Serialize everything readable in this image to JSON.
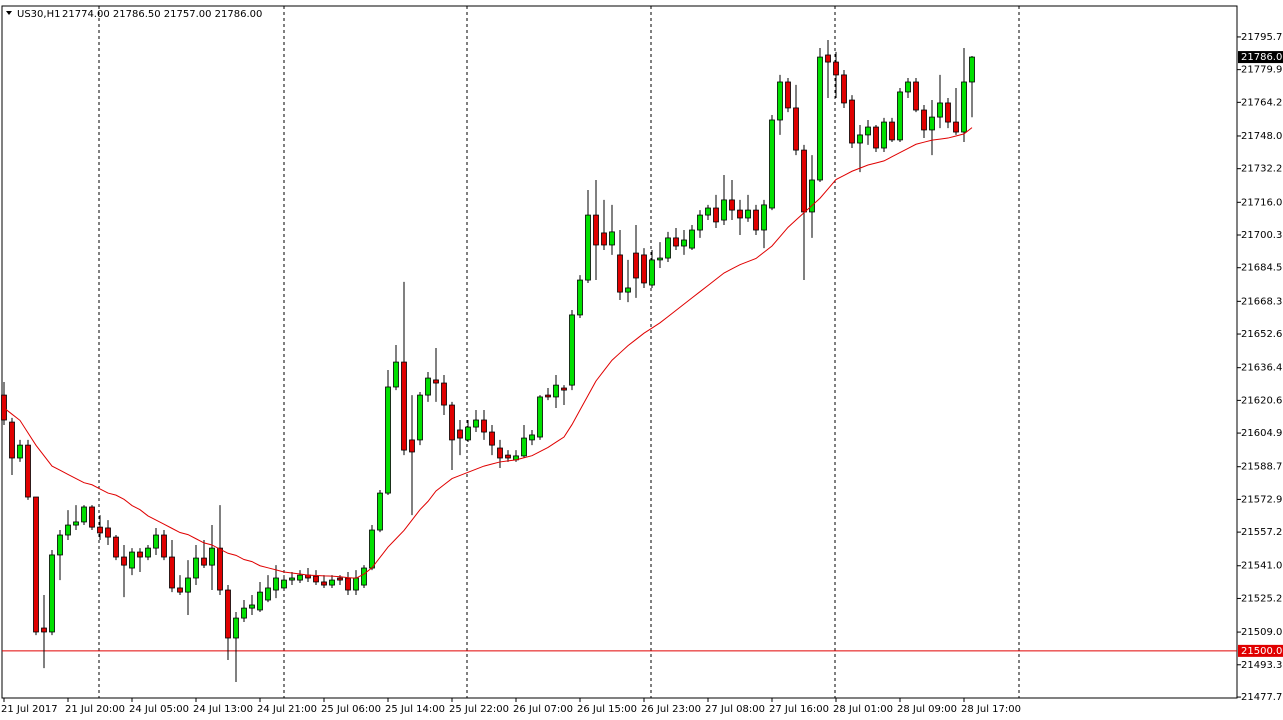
{
  "chart_data": {
    "type": "candlestick",
    "title": "US30,H1",
    "ohlc_label": "21774.00 21786.50 21757.00 21786.00",
    "categories": [
      "21 Jul 2017",
      null,
      null,
      null,
      null,
      null,
      null,
      null,
      "21 Jul 20:00",
      null,
      null,
      null,
      null,
      null,
      null,
      null,
      "24 Jul 05:00",
      null,
      null,
      null,
      null,
      null,
      null,
      null,
      "24 Jul 13:00",
      null,
      null,
      null,
      null,
      null,
      null,
      null,
      "24 Jul 21:00",
      null,
      null,
      null,
      null,
      null,
      null,
      null,
      "25 Jul 06:00",
      null,
      null,
      null,
      null,
      null,
      null,
      null,
      "25 Jul 14:00",
      null,
      null,
      null,
      null,
      null,
      null,
      null,
      "25 Jul 22:00",
      null,
      null,
      null,
      null,
      null,
      null,
      null,
      "26 Jul 07:00",
      null,
      null,
      null,
      null,
      null,
      null,
      null,
      "26 Jul 15:00",
      null,
      null,
      null,
      null,
      null,
      null,
      null,
      "26 Jul 23:00",
      null,
      null,
      null,
      null,
      null,
      null,
      null,
      "27 Jul 08:00",
      null,
      null,
      null,
      null,
      null,
      null,
      null,
      "27 Jul 16:00",
      null,
      null,
      null,
      null,
      null,
      null,
      null,
      "28 Jul 01:00",
      null,
      null,
      null,
      null,
      null,
      null,
      null,
      "28 Jul 09:00",
      null,
      null,
      null,
      null,
      null,
      null,
      null,
      "28 Jul 17:00",
      null
    ],
    "open": [
      21623.2,
      21610.2,
      21592.9,
      21599.1,
      21574.1,
      21511.0,
      21509.1,
      21546.2,
      21555.8,
      21560.6,
      21562.1,
      21569.3,
      21559.6,
      21559.2,
      21554.8,
      21545.2,
      21539.9,
      21547.6,
      21545.2,
      21549.5,
      21555.8,
      21545.2,
      21530.3,
      21528.3,
      21535.1,
      21544.7,
      21541.3,
      21549.5,
      21529.3,
      21506.2,
      21515.8,
      21520.6,
      21519.7,
      21524.5,
      21529.3,
      21530.3,
      21534.1,
      21534.1,
      21536.5,
      21536.0,
      21533.2,
      21531.7,
      21535.1,
      21535.1,
      21529.3,
      21531.7,
      21539.9,
      21558.2,
      21576.0,
      21627.1,
      21639.1,
      21601.6,
      21601.6,
      21623.2,
      21630.5,
      21629.0,
      21618.4,
      21606.4,
      21601.6,
      21607.8,
      21611.2,
      21605.4,
      21597.7,
      21594.3,
      21592.0,
      21593.9,
      21601.6,
      21603.0,
      21623.2,
      21622.3,
      21626.6,
      21628.0,
      21661.8,
      21678.6,
      21709.9,
      21701.3,
      21695.5,
      21690.7,
      21672.8,
      21691.6,
      21690.7,
      21676.2,
      21688.3,
      21689.2,
      21698.9,
      21695.0,
      21694.0,
      21702.7,
      21709.9,
      21713.3,
      21707.5,
      21717.2,
      21712.3,
      21708.5,
      21712.3,
      21702.7,
      21713.3,
      21755.7,
      21774.0,
      21761.5,
      21741.2,
      21711.4,
      21726.8,
      21787.0,
      21783.6,
      21777.4,
      21765.3,
      21744.6,
      21748.5,
      21752.3,
      21742.2,
      21754.7,
      21746.1,
      21769.2,
      21774.0,
      21760.5,
      21750.9,
      21757.1,
      21763.9,
      21754.7,
      21749.9,
      21774
    ],
    "high": [
      21629.5,
      21612.2,
      21601.6,
      21601.6,
      21574.1,
      21526.9,
      21548.6,
      21558.2,
      21567.8,
      21570.2,
      21570.2,
      21570.2,
      21565.4,
      21563.0,
      21555.8,
      21551.0,
      21549.5,
      21549.5,
      21551.0,
      21559.2,
      21558.2,
      21553.4,
      21536.5,
      21543.7,
      21551.0,
      21553.4,
      21560.6,
      21570.2,
      21531.7,
      21518.7,
      21524.5,
      21526.9,
      21533.2,
      21536.5,
      21541.3,
      21536.5,
      21538.0,
      21538.9,
      21539.9,
      21538.9,
      21536.5,
      21536.5,
      21536.5,
      21538.0,
      21538.9,
      21541.3,
      21560.6,
      21577.5,
      21635.3,
      21647.3,
      21677.7,
      21623.2,
      21624.7,
      21634.3,
      21645.9,
      21632.9,
      21619.9,
      21611.2,
      21611.2,
      21616.0,
      21616.0,
      21608.8,
      21601.6,
      21596.7,
      21596.7,
      21608.8,
      21606.4,
      21623.2,
      21626.6,
      21632.9,
      21628.0,
      21664.2,
      21681.0,
      21722.0,
      21726.8,
      21717.2,
      21714.8,
      21702.7,
      21688.3,
      21705.1,
      21694.0,
      21693.1,
      21696.9,
      21701.8,
      21703.7,
      21702.7,
      21705.1,
      21712.3,
      21714.8,
      21719.6,
      21729.2,
      21726.8,
      21717.2,
      21719.6,
      21714.8,
      21717.2,
      21758.1,
      21777.4,
      21775.9,
      21772.6,
      21743.7,
      21738.8,
      21790.4,
      21794.2,
      21788.5,
      21779.8,
      21767.7,
      21753.3,
      21755.7,
      21753.3,
      21756.7,
      21756.7,
      21771.1,
      21775.9,
      21775.9,
      21762.9,
      21765.3,
      21777.4,
      21766.3,
      21771.1,
      21790.4,
      21786.5
    ],
    "low": [
      21608.8,
      21584.7,
      21591.0,
      21572.7,
      21507.6,
      21491.7,
      21507.6,
      21534.1,
      21553.4,
      21558.2,
      21560.6,
      21558.2,
      21553.4,
      21551.0,
      21543.7,
      21525.9,
      21536.5,
      21538.0,
      21543.7,
      21546.2,
      21543.7,
      21528.3,
      21526.9,
      21517.3,
      21531.7,
      21539.9,
      21529.3,
      21526.9,
      21495.6,
      21485.0,
      21513.9,
      21517.3,
      21518.7,
      21523.5,
      21525.4,
      21529.3,
      21531.7,
      21532.7,
      21533.2,
      21531.7,
      21530.3,
      21530.3,
      21531.7,
      21526.9,
      21526.9,
      21530.3,
      21538.9,
      21557.2,
      21575.1,
      21625.6,
      21594.3,
      21565.4,
      21599.1,
      21619.9,
      21619.9,
      21613.6,
      21587.1,
      21594.3,
      21600.6,
      21605.4,
      21601.6,
      21594.3,
      21588.1,
      21591.0,
      21591.0,
      21592.9,
      21599.1,
      21601.6,
      21620.8,
      21617.0,
      21618.4,
      21625.6,
      21660.3,
      21677.2,
      21678.6,
      21693.1,
      21690.7,
      21669.0,
      21668.0,
      21670.0,
      21674.8,
      21674.8,
      21684.4,
      21687.3,
      21693.1,
      21690.7,
      21693.1,
      21698.9,
      21707.5,
      21703.7,
      21705.1,
      21707.5,
      21700.3,
      21706.6,
      21700.3,
      21694.0,
      21712.3,
      21748.5,
      21759.5,
      21738.8,
      21678.6,
      21698.9,
      21725.8,
      21766.3,
      21766.3,
      21761.5,
      21742.2,
      21730.6,
      21743.7,
      21740.3,
      21740.3,
      21745.1,
      21745.1,
      21766.3,
      21759.5,
      21747.0,
      21738.8,
      21751.8,
      21751.8,
      21748.5,
      21745.1,
      21757
    ],
    "close": [
      21611.2,
      21592.9,
      21599.1,
      21574.1,
      21509.1,
      21509.1,
      21546.2,
      21555.8,
      21560.6,
      21562.1,
      21569.3,
      21559.6,
      21556.8,
      21554.8,
      21545.2,
      21541.3,
      21547.6,
      21545.2,
      21549.5,
      21555.8,
      21545.2,
      21530.3,
      21528.3,
      21535.1,
      21544.7,
      21541.3,
      21549.5,
      21529.3,
      21506.2,
      21515.8,
      21520.6,
      21522.1,
      21528.3,
      21530.3,
      21535.1,
      21534.1,
      21535.1,
      21536.5,
      21535.1,
      21533.2,
      21531.7,
      21534.1,
      21534.1,
      21529.3,
      21535.1,
      21539.9,
      21558.2,
      21576.0,
      21627.1,
      21639.1,
      21596.7,
      21595.8,
      21623.2,
      21631.4,
      21629.0,
      21618.4,
      21601.6,
      21602.5,
      21607.8,
      21611.2,
      21605.4,
      21599.1,
      21592.9,
      21592.9,
      21593.9,
      21602.5,
      21604.0,
      21622.3,
      21622.3,
      21628.0,
      21625.6,
      21661.8,
      21678.6,
      21709.9,
      21695.5,
      21695.5,
      21701.8,
      21672.8,
      21674.8,
      21679.6,
      21677.2,
      21688.3,
      21689.2,
      21698.9,
      21695.0,
      21697.9,
      21702.7,
      21709.9,
      21713.3,
      21706.6,
      21717.2,
      21712.3,
      21708.5,
      21712.3,
      21702.7,
      21714.8,
      21755.7,
      21774.0,
      21761.5,
      21741.2,
      21711.4,
      21726.8,
      21786.0,
      21783.6,
      21777.4,
      21763.9,
      21744.6,
      21748.5,
      21752.3,
      21742.2,
      21754.7,
      21746.1,
      21769.2,
      21774.0,
      21760.5,
      21750.9,
      21757.1,
      21763.9,
      21754.7,
      21749.9,
      21774.0,
      21786
    ],
    "moving_average": {
      "color": "#e00000",
      "values": [
        21617,
        21614,
        21611,
        21605,
        21599,
        21594,
        21589,
        21587,
        21585,
        21583,
        21581,
        21580,
        21578,
        21576,
        21575,
        21573,
        21570,
        21568,
        21565,
        21563,
        21561,
        21559,
        21557,
        21556,
        21554,
        21552,
        21551,
        21549,
        21547,
        21546,
        21544,
        21543,
        21541,
        21540,
        21539,
        21538,
        21537.5,
        21537,
        21536.5,
        21536.3,
        21536.1,
        21536,
        21535.7,
        21535.3,
        21535,
        21537,
        21540,
        21545,
        21550,
        21554,
        21558,
        21563,
        21568,
        21572,
        21577,
        21580,
        21583,
        21584.5,
        21586,
        21587.5,
        21589,
        21590,
        21591,
        21591.5,
        21592,
        21593,
        21594,
        21596,
        21598,
        21600.5,
        21603,
        21609,
        21616,
        21623,
        21630,
        21635,
        21640,
        21643.5,
        21647,
        21650,
        21653,
        21655.5,
        21658,
        21661,
        21664,
        21667,
        21670,
        21673,
        21676,
        21679,
        21682,
        21684,
        21686,
        21687.5,
        21689,
        21692,
        21695,
        21699.5,
        21704,
        21707.5,
        21711,
        21714.5,
        21718,
        21722.5,
        21727,
        21729,
        21731,
        21732.5,
        21734,
        21735,
        21736,
        21738,
        21740,
        21742,
        21744,
        21745,
        21746,
        21746.5,
        21747,
        21748,
        21749,
        21752
      ]
    },
    "up_color": "#00e000",
    "down_color": "#e00000",
    "ylim": [
      21477.3,
      21810.6
    ],
    "yticks": [
      {
        "value": 21795.7,
        "label": "21795.70"
      },
      {
        "value": 21779.95,
        "label": "21779.95"
      },
      {
        "value": 21764.2,
        "label": "21764.20"
      },
      {
        "value": 21748,
        "label": "21748.00"
      },
      {
        "value": 21732.25,
        "label": "21732.25"
      },
      {
        "value": 21716.05,
        "label": "21716.05"
      },
      {
        "value": 21700.3,
        "label": "21700.30"
      },
      {
        "value": 21684.55,
        "label": "21684.55"
      },
      {
        "value": 21668.35,
        "label": "21668.35"
      },
      {
        "value": 21652.6,
        "label": "21652.60"
      },
      {
        "value": 21636.4,
        "label": "21636.40"
      },
      {
        "value": 21620.65,
        "label": "21620.65"
      },
      {
        "value": 21604.9,
        "label": "21604.90"
      },
      {
        "value": 21588.7,
        "label": "21588.70"
      },
      {
        "value": 21572.95,
        "label": "21572.95"
      },
      {
        "value": 21557.2,
        "label": "21557.20"
      },
      {
        "value": 21541,
        "label": "21541.00"
      },
      {
        "value": 21525.25,
        "label": "21525.25"
      },
      {
        "value": 21509.05,
        "label": "21509.05"
      },
      {
        "value": 21493.3,
        "label": "21493.30"
      },
      {
        "value": 21477.75,
        "label": "21477.75"
      }
    ],
    "current_price": {
      "value": 21786,
      "label": "21786.00"
    },
    "level_line": {
      "value": 21500,
      "label": "21500.00",
      "color": "#e00000"
    }
  }
}
